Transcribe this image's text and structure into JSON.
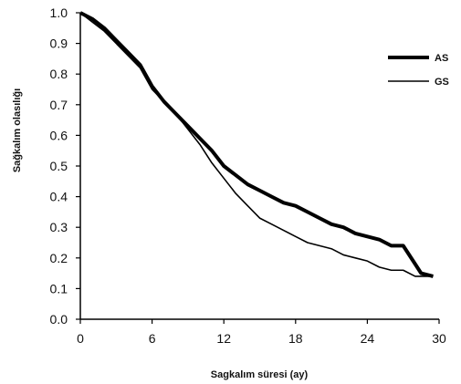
{
  "chart_data": {
    "type": "line",
    "title": "",
    "xlabel": "Sagkalım süresi (ay)",
    "ylabel": "Sağkalım olasılığı",
    "xlim": [
      0,
      30
    ],
    "ylim": [
      0,
      1.0
    ],
    "x_ticks": [
      "0",
      "6",
      "12",
      "18",
      "24",
      "30"
    ],
    "y_ticks": [
      "0.0",
      "0.1",
      "0.2",
      "0.3",
      "0.4",
      "0.5",
      "0.6",
      "0.7",
      "0.8",
      "0.9",
      "1.0"
    ],
    "grid": false,
    "legend_position": "top-right",
    "series": [
      {
        "name": "AS",
        "style": "thick",
        "color": "#000000",
        "x": [
          0,
          1,
          2,
          3,
          4,
          5,
          6,
          7,
          8,
          9,
          10,
          11,
          12,
          13,
          14,
          15,
          16,
          17,
          18,
          19,
          20,
          21,
          22,
          23,
          24,
          25,
          26,
          27,
          28,
          28.5,
          29.5
        ],
        "y": [
          1.0,
          0.98,
          0.95,
          0.91,
          0.87,
          0.83,
          0.76,
          0.71,
          0.67,
          0.63,
          0.59,
          0.55,
          0.5,
          0.47,
          0.44,
          0.42,
          0.4,
          0.38,
          0.37,
          0.35,
          0.33,
          0.31,
          0.3,
          0.28,
          0.27,
          0.26,
          0.24,
          0.24,
          0.18,
          0.15,
          0.14
        ]
      },
      {
        "name": "GS",
        "style": "thin",
        "color": "#000000",
        "x": [
          0,
          1,
          2,
          3,
          4,
          5,
          6,
          7,
          8,
          9,
          10,
          11,
          12,
          13,
          14,
          15,
          16,
          17,
          18,
          19,
          20,
          21,
          22,
          23,
          24,
          25,
          26,
          27,
          28,
          29,
          29.5
        ],
        "y": [
          1.0,
          0.97,
          0.94,
          0.9,
          0.86,
          0.82,
          0.75,
          0.71,
          0.67,
          0.62,
          0.57,
          0.51,
          0.46,
          0.41,
          0.37,
          0.33,
          0.31,
          0.29,
          0.27,
          0.25,
          0.24,
          0.23,
          0.21,
          0.2,
          0.19,
          0.17,
          0.16,
          0.16,
          0.14,
          0.14,
          0.14
        ]
      }
    ]
  }
}
